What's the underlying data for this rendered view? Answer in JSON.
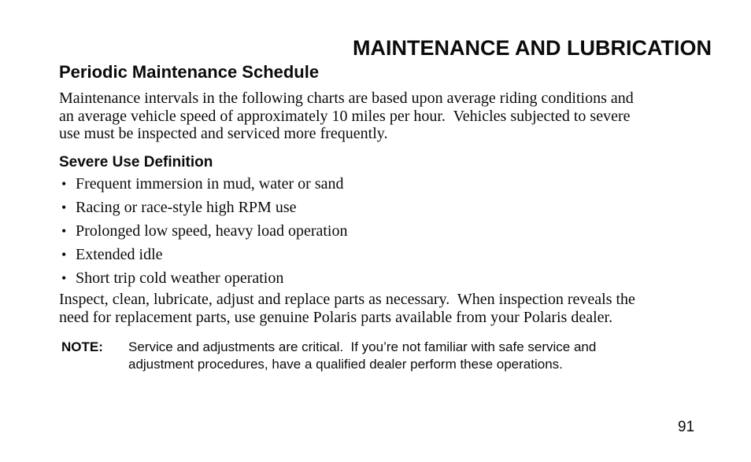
{
  "page": {
    "title": "MAINTENANCE AND LUBRICATION",
    "section_heading": "Periodic Maintenance Schedule",
    "intro_paragraph": "Maintenance intervals in the following charts are based upon average riding conditions and\nan average vehicle speed of approximately 10 miles per hour.  Vehicles subjected to severe\nuse must be inspected and serviced more frequently.",
    "severe_use": {
      "heading": "Severe Use Definition",
      "bullet_glyph": "•",
      "items": [
        "Frequent immersion in mud, water or sand",
        "Racing or race-style high RPM use",
        "Prolonged low speed, heavy load operation",
        "Extended idle",
        "Short trip cold weather operation"
      ]
    },
    "inspect_paragraph": "Inspect, clean, lubricate, adjust and replace parts as necessary.  When inspection reveals the\nneed for replacement parts, use genuine Polaris parts available from your Polaris dealer.",
    "note": {
      "label": "NOTE:",
      "text": "Service and adjustments are critical.  If you’re not familiar with safe service and\nadjustment procedures, have a qualified dealer perform these operations."
    },
    "page_number": "91"
  }
}
